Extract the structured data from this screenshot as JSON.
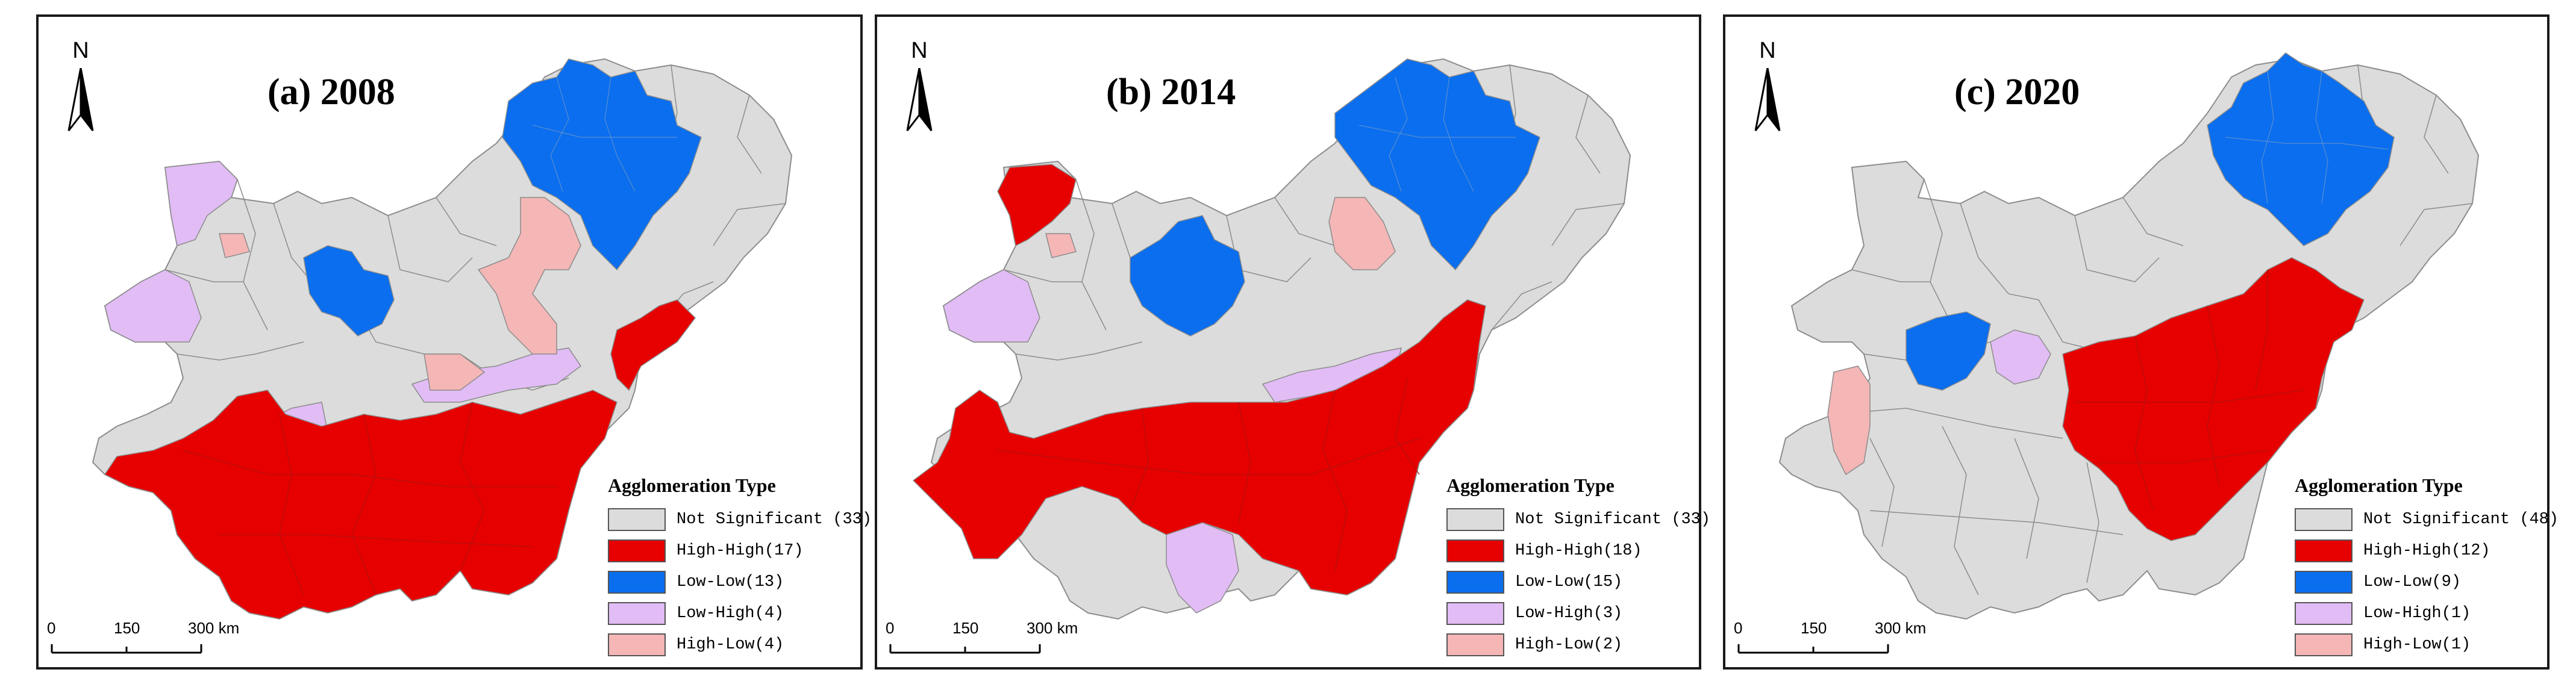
{
  "colors": {
    "not_significant": "#dcdcdc",
    "high_high": "#e60000",
    "low_low": "#0a6eee",
    "low_high": "#e1bcf5",
    "high_low": "#f5b6b6",
    "boundary": "#8c8c8c"
  },
  "legend_title": "Agglomeration Type",
  "scale": {
    "ticks": [
      "0",
      "150",
      "300 km"
    ]
  },
  "north_label": "N",
  "panels": [
    {
      "title": "(a) 2008",
      "legend": [
        {
          "type": "not_significant",
          "label": "Not Significant (33)"
        },
        {
          "type": "high_high",
          "label": "High-High(17)"
        },
        {
          "type": "low_low",
          "label": "Low-Low(13)"
        },
        {
          "type": "low_high",
          "label": "Low-High(4)"
        },
        {
          "type": "high_low",
          "label": "High-Low(4)"
        }
      ]
    },
    {
      "title": "(b) 2014",
      "legend": [
        {
          "type": "not_significant",
          "label": "Not Significant (33)"
        },
        {
          "type": "high_high",
          "label": "High-High(18)"
        },
        {
          "type": "low_low",
          "label": "Low-Low(15)"
        },
        {
          "type": "low_high",
          "label": "Low-High(3)"
        },
        {
          "type": "high_low",
          "label": "High-Low(2)"
        }
      ]
    },
    {
      "title": "(c) 2020",
      "legend": [
        {
          "type": "not_significant",
          "label": "Not Significant (48)"
        },
        {
          "type": "high_high",
          "label": "High-High(12)"
        },
        {
          "type": "low_low",
          "label": "Low-Low(9)"
        },
        {
          "type": "low_high",
          "label": "Low-High(1)"
        },
        {
          "type": "high_low",
          "label": "High-Low(1)"
        }
      ]
    }
  ]
}
